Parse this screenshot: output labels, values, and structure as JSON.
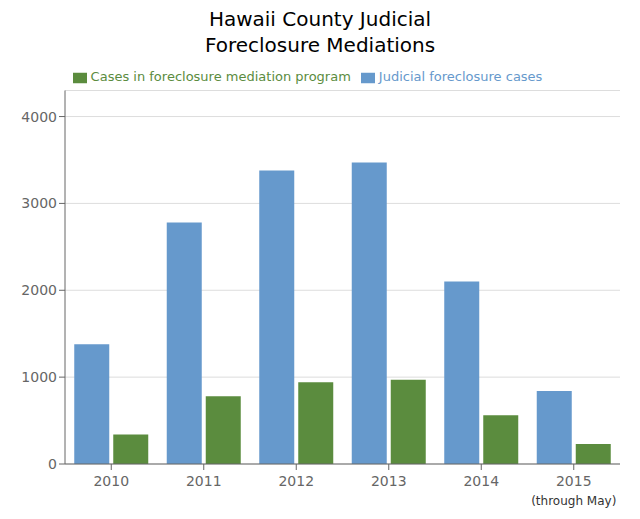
{
  "chart_data": {
    "type": "bar",
    "title": "Hawaii County Judicial\nForeclosure Mediations",
    "categories": [
      "2010",
      "2011",
      "2012",
      "2013",
      "2014",
      "2015"
    ],
    "series": [
      {
        "name": "Judicial foreclosure cases",
        "color": "#6699CC",
        "values": [
          1380,
          2780,
          3380,
          3470,
          2100,
          840
        ]
      },
      {
        "name": "Cases in foreclosure mediation program",
        "color": "#5B8C3E",
        "values": [
          340,
          780,
          940,
          970,
          560,
          230
        ]
      }
    ],
    "annotations": [
      {
        "text": "(through May)",
        "x": "2015"
      }
    ],
    "ylim": [
      0,
      4300
    ],
    "yticks": [
      0,
      1000,
      2000,
      3000,
      4000
    ],
    "grid": true,
    "legend": "top"
  }
}
